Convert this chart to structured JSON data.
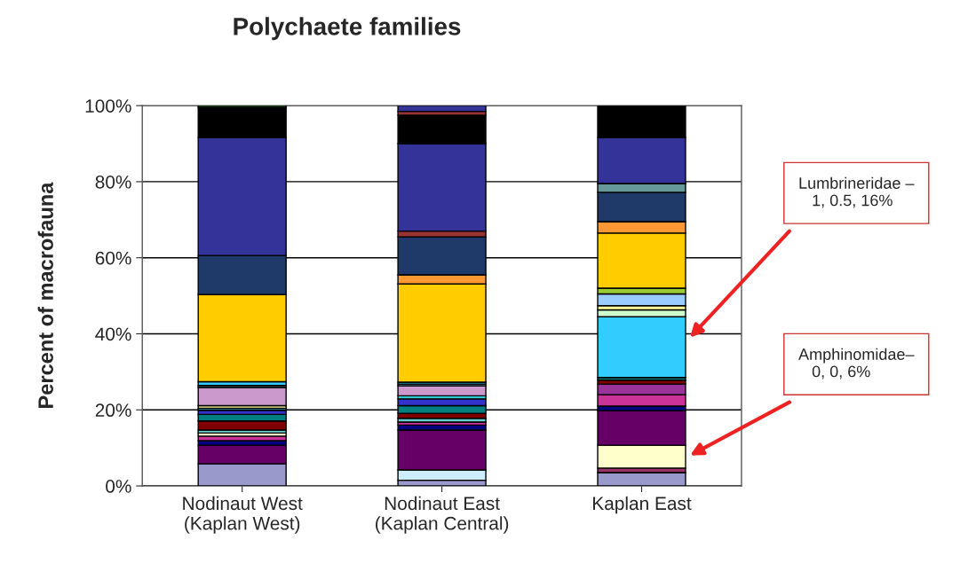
{
  "chart_data": {
    "type": "bar",
    "stacked": true,
    "title": "Polychaete families",
    "ylabel": "Percent of macrofauna",
    "categories": [
      "Nodinaut West\n(Kaplan West)",
      "Nodinaut East\n(Kaplan Central)",
      "Kaplan East"
    ],
    "series": [
      {
        "color": "#9999cc",
        "values": [
          5.8,
          1.5,
          3.5
        ]
      },
      {
        "color": "#cceeff",
        "values": [
          0,
          2.7,
          0
        ]
      },
      {
        "color": "#993366",
        "values": [
          0,
          0,
          1.2
        ]
      },
      {
        "color": "#ffffcc",
        "values": [
          0,
          0,
          6
        ]
      },
      {
        "color": "#660066",
        "values": [
          4.9,
          10.5,
          9.1
        ]
      },
      {
        "color": "#000080",
        "values": [
          1.2,
          1.3,
          1.2
        ]
      },
      {
        "color": "#cc3399",
        "values": [
          1.2,
          0.8,
          3.0
        ]
      },
      {
        "color": "#993399",
        "values": [
          0,
          0,
          2.8
        ]
      },
      {
        "color": "#ffffcc",
        "values": [
          0.8,
          0,
          0
        ]
      },
      {
        "color": "#66cccc",
        "values": [
          0.8,
          1.0,
          0
        ]
      },
      {
        "color": "#800000",
        "values": [
          2.4,
          1.3,
          1.0
        ]
      },
      {
        "color": "#008080",
        "values": [
          1.7,
          2.0,
          0.7
        ]
      },
      {
        "color": "#3333cc",
        "values": [
          1.1,
          1.8,
          0
        ]
      },
      {
        "color": "#33cccc",
        "values": [
          0.5,
          0.8,
          0
        ]
      },
      {
        "color": "#ffff99",
        "values": [
          0.7,
          0,
          0
        ]
      },
      {
        "color": "#cc99cc",
        "values": [
          4.8,
          2.6,
          0
        ]
      },
      {
        "color": "#669999",
        "values": [
          0.5,
          0.5,
          0
        ]
      },
      {
        "color": "#33ccff",
        "values": [
          1,
          0.5,
          16
        ]
      },
      {
        "color": "#ccffcc",
        "values": [
          0,
          0,
          1.8
        ]
      },
      {
        "color": "#ffff99",
        "values": [
          0,
          0,
          1.1
        ]
      },
      {
        "color": "#99ccff",
        "values": [
          0,
          0,
          3.1
        ]
      },
      {
        "color": "#99cc33",
        "values": [
          0,
          0,
          1.5
        ]
      },
      {
        "color": "#ffcc00",
        "values": [
          22.9,
          25.8,
          14.5
        ]
      },
      {
        "color": "#ff9933",
        "values": [
          0,
          2.4,
          3.0
        ]
      },
      {
        "color": "#1f3a68",
        "values": [
          10.3,
          10,
          7.7
        ]
      },
      {
        "color": "#669999",
        "values": [
          0,
          0,
          2.3
        ]
      },
      {
        "color": "#993333",
        "values": [
          0,
          1.5,
          0
        ]
      },
      {
        "color": "#333399",
        "values": [
          31,
          23,
          12.1
        ]
      },
      {
        "color": "#000000",
        "values": [
          8,
          7.5,
          8.4
        ]
      },
      {
        "color": "#993333",
        "values": [
          0,
          1,
          0
        ]
      },
      {
        "color": "#333399",
        "values": [
          0,
          1.5,
          0
        ]
      },
      {
        "color": "#339933",
        "values": [
          0.4,
          0,
          0
        ]
      }
    ],
    "ylim": [
      0,
      100
    ],
    "yticks": [
      {
        "value": 0,
        "label": "0%"
      },
      {
        "value": 20,
        "label": "20%"
      },
      {
        "value": 40,
        "label": "40%"
      },
      {
        "value": 60,
        "label": "60%"
      },
      {
        "value": 80,
        "label": "80%"
      },
      {
        "value": 100,
        "label": "100%"
      }
    ],
    "grid": "y",
    "annotations": [
      "Lumbrineridae –\n   1, 0.5, 16%",
      "Amphinomidae–\n   0, 0, 6%"
    ]
  }
}
